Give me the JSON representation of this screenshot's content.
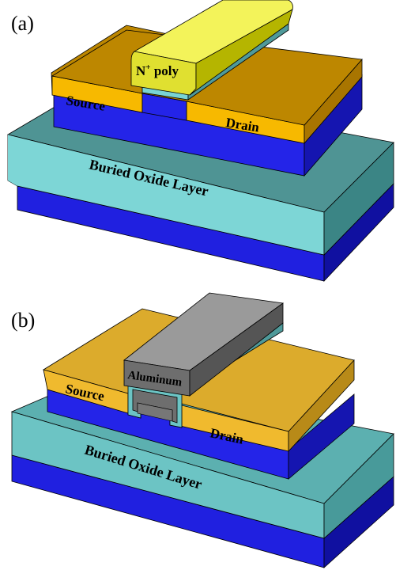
{
  "panel_a": {
    "letter": "(a)",
    "gate_label_main": "N",
    "gate_label_sup": "+",
    "gate_label_rest": " poly",
    "source_label": "Source",
    "drain_label": "Drain",
    "box_label": "Buried Oxide Layer"
  },
  "panel_b": {
    "letter": "(b)",
    "gate_label": "Aluminum",
    "source_label": "Source",
    "drain_label": "Drain",
    "box_label": "Buried Oxide Layer"
  },
  "colors": {
    "substrate_front": "#2323e6",
    "substrate_side": "#1414a8",
    "box_top_a": "#5aa0a0",
    "box_front_a": "#7fd8d8",
    "box_side_a": "#3d8c8c",
    "box_top_b": "#5fb3b3",
    "box_front_b": "#6cc4c4",
    "sd_top_a": "#c08a00",
    "sd_front_a": "#f5b800",
    "sd_top_b": "#ddad30",
    "sd_front_b": "#f0bb30",
    "poly_top": "#f5f55a",
    "poly_front": "#d6d600",
    "poly_side": "#b8b800",
    "aluminum_top": "#9a9a9a",
    "aluminum_front": "#6e6e6e",
    "aluminum_side": "#555555",
    "gate_oxide": "#5fc0c0"
  }
}
